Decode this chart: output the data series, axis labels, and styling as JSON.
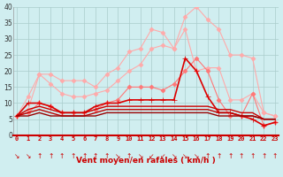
{
  "x": [
    0,
    1,
    2,
    3,
    4,
    5,
    6,
    7,
    8,
    9,
    10,
    11,
    12,
    13,
    14,
    15,
    16,
    17,
    18,
    19,
    20,
    21,
    22,
    23
  ],
  "series": [
    {
      "color": "#ffaaaa",
      "lw": 0.8,
      "marker": "D",
      "ms": 2.5,
      "values": [
        6,
        12,
        19,
        19,
        17,
        17,
        17,
        15,
        19,
        21,
        26,
        27,
        33,
        32,
        27,
        37,
        40,
        36,
        33,
        25,
        25,
        24,
        7,
        6
      ]
    },
    {
      "color": "#ffaaaa",
      "lw": 0.8,
      "marker": "D",
      "ms": 2.5,
      "values": [
        6,
        8,
        19,
        16,
        13,
        12,
        12,
        13,
        14,
        17,
        20,
        22,
        27,
        28,
        27,
        33,
        20,
        21,
        21,
        11,
        11,
        13,
        7,
        6
      ]
    },
    {
      "color": "#ff7777",
      "lw": 0.8,
      "marker": "D",
      "ms": 2.5,
      "values": [
        6,
        7,
        10,
        9,
        7,
        7,
        7,
        8,
        10,
        11,
        15,
        15,
        15,
        14,
        16,
        20,
        24,
        20,
        11,
        6,
        6,
        13,
        3,
        4
      ]
    },
    {
      "color": "#dd0000",
      "lw": 1.2,
      "marker": "+",
      "ms": 4,
      "values": [
        6,
        10,
        10,
        9,
        7,
        7,
        7,
        9,
        10,
        10,
        11,
        11,
        11,
        11,
        11,
        24,
        20,
        12,
        7,
        7,
        6,
        5,
        3,
        4
      ]
    },
    {
      "color": "#cc0000",
      "lw": 1.0,
      "marker": null,
      "ms": 0,
      "values": [
        6,
        8,
        9,
        8,
        7,
        7,
        7,
        8,
        9,
        9,
        9,
        9,
        9,
        9,
        9,
        9,
        9,
        9,
        8,
        8,
        7,
        7,
        5,
        5
      ]
    },
    {
      "color": "#bb0000",
      "lw": 1.0,
      "marker": null,
      "ms": 0,
      "values": [
        6,
        7,
        8,
        7,
        6,
        6,
        6,
        7,
        8,
        8,
        8,
        8,
        8,
        8,
        8,
        8,
        8,
        8,
        7,
        7,
        6,
        6,
        5,
        5
      ]
    },
    {
      "color": "#990000",
      "lw": 1.0,
      "marker": null,
      "ms": 0,
      "values": [
        6,
        6,
        7,
        6,
        6,
        6,
        6,
        6,
        7,
        7,
        7,
        7,
        7,
        7,
        7,
        7,
        7,
        7,
        6,
        6,
        6,
        6,
        5,
        5
      ]
    }
  ],
  "xlabel": "Vent moyen/en rafales ( km/h )",
  "ylim": [
    0,
    40
  ],
  "xlim": [
    0,
    23
  ],
  "yticks": [
    0,
    5,
    10,
    15,
    20,
    25,
    30,
    35,
    40
  ],
  "xticks": [
    0,
    1,
    2,
    3,
    4,
    5,
    6,
    7,
    8,
    9,
    10,
    11,
    12,
    13,
    14,
    15,
    16,
    17,
    18,
    19,
    20,
    21,
    22,
    23
  ],
  "background_color": "#d0eef0",
  "grid_color": "#aacccc",
  "arrow_chars": [
    "↘",
    "↘",
    "↑",
    "↑",
    "↑",
    "↑",
    "↑",
    "↑",
    "↑",
    "↘",
    "↑",
    "↘",
    "↙",
    "↙",
    "↘",
    "↘",
    "↘",
    "↑",
    "↑",
    "↑",
    "↑",
    "↑",
    "↑",
    "↑"
  ]
}
